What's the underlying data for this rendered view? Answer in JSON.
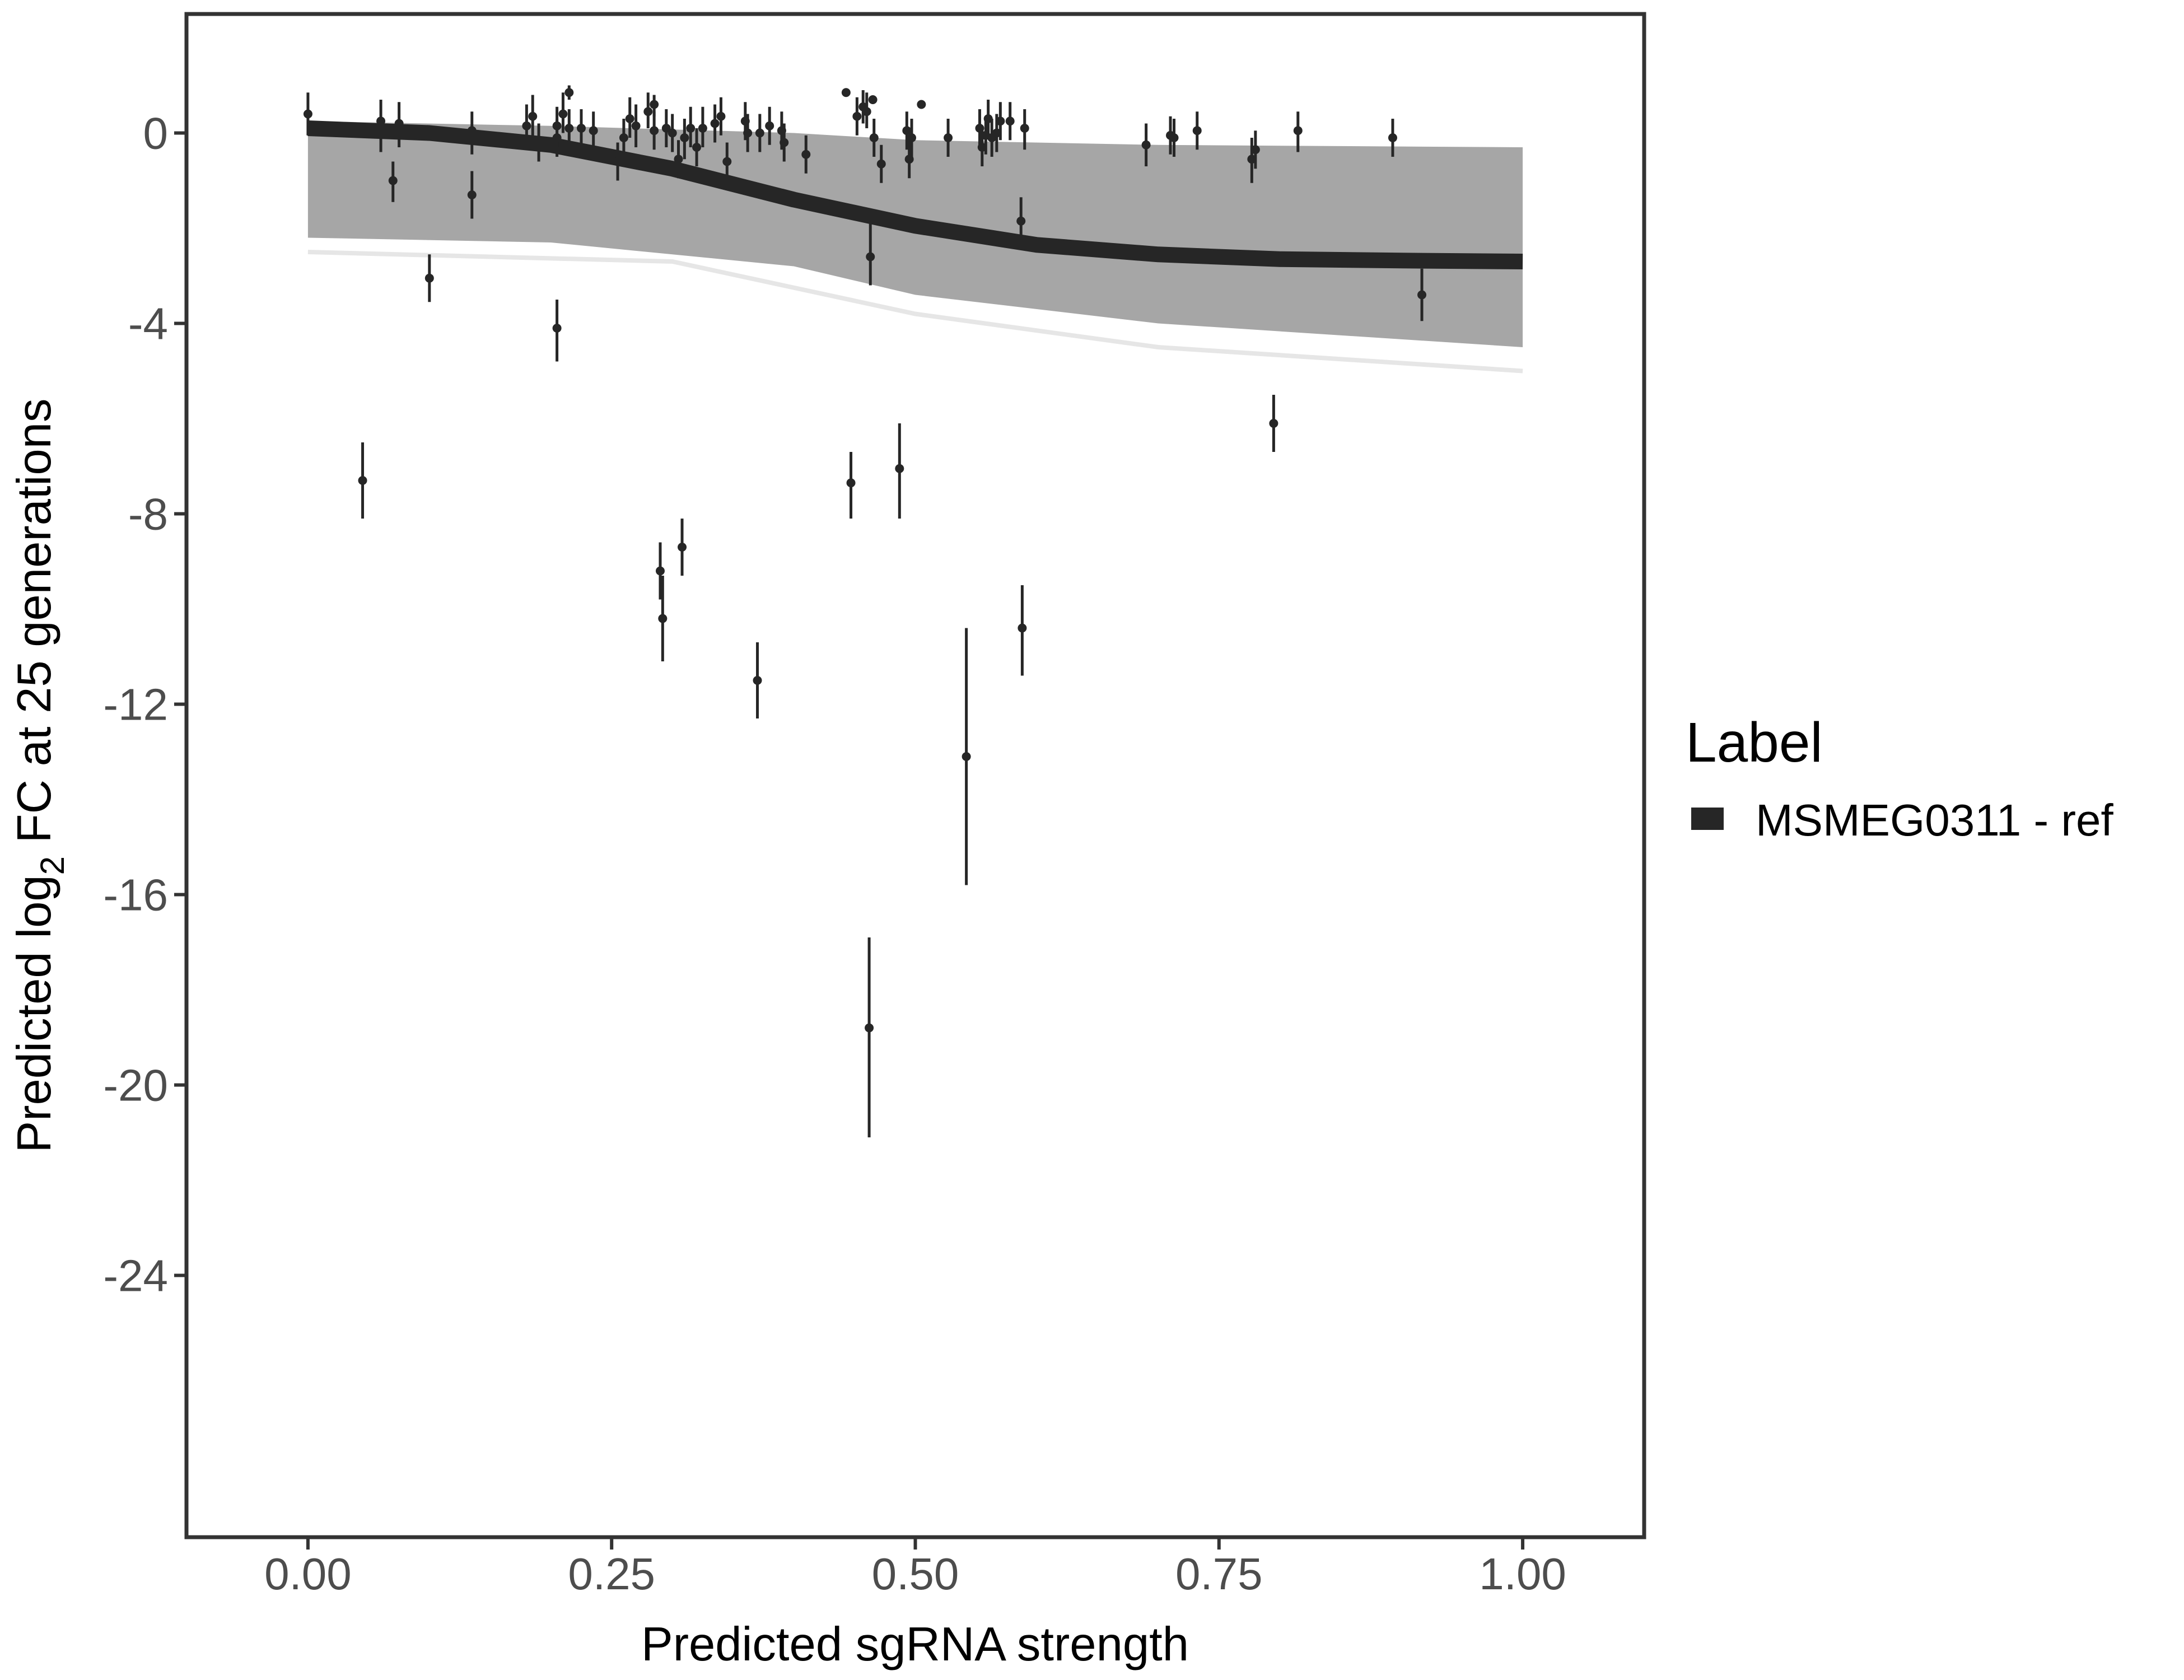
{
  "chart_data": {
    "type": "scatter",
    "xlabel": "Predicted sgRNA strength",
    "ylabel_parts": {
      "prefix": "Predicted  log",
      "subscript": "2",
      "suffix": " FC at 25 generations"
    },
    "xlim": [
      -0.1,
      1.1
    ],
    "ylim": [
      -29.5,
      2.5
    ],
    "x_ticks": [
      {
        "value": 0.0,
        "label": "0.00"
      },
      {
        "value": 0.25,
        "label": "0.25"
      },
      {
        "value": 0.5,
        "label": "0.50"
      },
      {
        "value": 0.75,
        "label": "0.75"
      },
      {
        "value": 1.0,
        "label": "1.00"
      }
    ],
    "y_ticks": [
      {
        "value": 0,
        "label": "0"
      },
      {
        "value": -4,
        "label": "-4"
      },
      {
        "value": -8,
        "label": "-8"
      },
      {
        "value": -12,
        "label": "-12"
      },
      {
        "value": -16,
        "label": "-16"
      },
      {
        "value": -20,
        "label": "-20"
      },
      {
        "value": -24,
        "label": "-24"
      }
    ],
    "grid": false,
    "legend": {
      "title": "Label",
      "placement": "right",
      "entries": [
        {
          "label": "MSMEG0311 - ref",
          "color": "#262626"
        }
      ]
    },
    "fit_curve": {
      "color": "#262626",
      "points": [
        [
          0,
          0.1
        ],
        [
          0.1,
          0.0
        ],
        [
          0.2,
          -0.25
        ],
        [
          0.3,
          -0.75
        ],
        [
          0.4,
          -1.4
        ],
        [
          0.5,
          -1.95
        ],
        [
          0.6,
          -2.35
        ],
        [
          0.7,
          -2.55
        ],
        [
          0.8,
          -2.65
        ],
        [
          0.9,
          -2.68
        ],
        [
          1.0,
          -2.7
        ]
      ]
    },
    "band": {
      "color": "#a6a6a6",
      "upper": [
        [
          0,
          0.25
        ],
        [
          0.2,
          0.15
        ],
        [
          0.4,
          0.0
        ],
        [
          0.5,
          -0.15
        ],
        [
          0.7,
          -0.25
        ],
        [
          1.0,
          -0.3
        ]
      ],
      "lower": [
        [
          0,
          -2.2
        ],
        [
          0.2,
          -2.3
        ],
        [
          0.4,
          -2.8
        ],
        [
          0.5,
          -3.4
        ],
        [
          0.7,
          -4.0
        ],
        [
          1.0,
          -4.5
        ]
      ]
    },
    "points": [
      {
        "x": 0.0,
        "y": 0.4,
        "lo": -0.05,
        "hi": 0.85
      },
      {
        "x": 0.045,
        "y": -7.3,
        "lo": -8.1,
        "hi": -6.5
      },
      {
        "x": 0.06,
        "y": 0.25,
        "lo": -0.4,
        "hi": 0.7
      },
      {
        "x": 0.07,
        "y": -1.0,
        "lo": -1.45,
        "hi": -0.6
      },
      {
        "x": 0.075,
        "y": 0.2,
        "lo": -0.3,
        "hi": 0.65
      },
      {
        "x": 0.1,
        "y": -3.05,
        "lo": -3.55,
        "hi": -2.55
      },
      {
        "x": 0.135,
        "y": 0.05,
        "lo": -0.45,
        "hi": 0.45
      },
      {
        "x": 0.135,
        "y": -1.3,
        "lo": -1.8,
        "hi": -0.8
      },
      {
        "x": 0.18,
        "y": 0.15,
        "lo": -0.3,
        "hi": 0.6
      },
      {
        "x": 0.185,
        "y": 0.35,
        "lo": -0.1,
        "hi": 0.8
      },
      {
        "x": 0.19,
        "y": -0.2,
        "lo": -0.6,
        "hi": 0.2
      },
      {
        "x": 0.205,
        "y": -4.1,
        "lo": -4.8,
        "hi": -3.5
      },
      {
        "x": 0.205,
        "y": 0.15,
        "lo": -0.3,
        "hi": 0.55
      },
      {
        "x": 0.205,
        "y": -0.1,
        "lo": -0.5,
        "hi": 0.3
      },
      {
        "x": 0.21,
        "y": 0.4,
        "lo": 0.0,
        "hi": 0.85
      },
      {
        "x": 0.215,
        "y": 0.1,
        "lo": -0.3,
        "hi": 0.5
      },
      {
        "x": 0.215,
        "y": 0.85,
        "lo": 0.7,
        "hi": 1.0
      },
      {
        "x": 0.225,
        "y": 0.1,
        "lo": -0.35,
        "hi": 0.5
      },
      {
        "x": 0.235,
        "y": 0.05,
        "lo": -0.35,
        "hi": 0.45
      },
      {
        "x": 0.255,
        "y": -0.6,
        "lo": -1.0,
        "hi": -0.2
      },
      {
        "x": 0.26,
        "y": -0.1,
        "lo": -0.5,
        "hi": 0.3
      },
      {
        "x": 0.265,
        "y": 0.3,
        "lo": -0.1,
        "hi": 0.75
      },
      {
        "x": 0.27,
        "y": 0.15,
        "lo": -0.3,
        "hi": 0.6
      },
      {
        "x": 0.28,
        "y": 0.45,
        "lo": 0.1,
        "hi": 0.85
      },
      {
        "x": 0.285,
        "y": 0.6,
        "lo": 0.35,
        "hi": 0.8
      },
      {
        "x": 0.285,
        "y": 0.05,
        "lo": -0.35,
        "hi": 0.45
      },
      {
        "x": 0.29,
        "y": -9.2,
        "lo": -9.8,
        "hi": -8.6
      },
      {
        "x": 0.292,
        "y": -10.2,
        "lo": -11.1,
        "hi": -9.3
      },
      {
        "x": 0.295,
        "y": 0.1,
        "lo": -0.3,
        "hi": 0.5
      },
      {
        "x": 0.3,
        "y": 0.0,
        "lo": -0.4,
        "hi": 0.4
      },
      {
        "x": 0.305,
        "y": -0.55,
        "lo": -0.95,
        "hi": -0.15
      },
      {
        "x": 0.308,
        "y": -8.7,
        "lo": -9.3,
        "hi": -8.1
      },
      {
        "x": 0.31,
        "y": -0.1,
        "lo": -0.55,
        "hi": 0.3
      },
      {
        "x": 0.315,
        "y": 0.1,
        "lo": -0.3,
        "hi": 0.55
      },
      {
        "x": 0.32,
        "y": -0.3,
        "lo": -0.7,
        "hi": 0.1
      },
      {
        "x": 0.325,
        "y": 0.1,
        "lo": -0.3,
        "hi": 0.55
      },
      {
        "x": 0.335,
        "y": 0.2,
        "lo": -0.2,
        "hi": 0.6
      },
      {
        "x": 0.34,
        "y": 0.35,
        "lo": -0.05,
        "hi": 0.75
      },
      {
        "x": 0.345,
        "y": -0.6,
        "lo": -1.0,
        "hi": -0.2
      },
      {
        "x": 0.36,
        "y": 0.25,
        "lo": -0.15,
        "hi": 0.65
      },
      {
        "x": 0.362,
        "y": 0.0,
        "lo": -0.4,
        "hi": 0.4
      },
      {
        "x": 0.37,
        "y": -11.5,
        "lo": -12.3,
        "hi": -10.7
      },
      {
        "x": 0.372,
        "y": 0.0,
        "lo": -0.4,
        "hi": 0.4
      },
      {
        "x": 0.38,
        "y": 0.15,
        "lo": -0.25,
        "hi": 0.55
      },
      {
        "x": 0.39,
        "y": 0.05,
        "lo": -0.35,
        "hi": 0.45
      },
      {
        "x": 0.392,
        "y": -0.2,
        "lo": -0.6,
        "hi": 0.2
      },
      {
        "x": 0.41,
        "y": -0.45,
        "lo": -0.85,
        "hi": -0.05
      },
      {
        "x": 0.443,
        "y": 0.85,
        "lo": 0.85,
        "hi": 0.85
      },
      {
        "x": 0.447,
        "y": -7.35,
        "lo": -8.1,
        "hi": -6.7
      },
      {
        "x": 0.452,
        "y": 0.35,
        "lo": -0.05,
        "hi": 0.75
      },
      {
        "x": 0.457,
        "y": 0.55,
        "lo": 0.2,
        "hi": 0.9
      },
      {
        "x": 0.46,
        "y": 0.45,
        "lo": 0.1,
        "hi": 0.85
      },
      {
        "x": 0.462,
        "y": -18.8,
        "lo": -21.1,
        "hi": -16.9
      },
      {
        "x": 0.463,
        "y": -2.6,
        "lo": -3.2,
        "hi": -1.9
      },
      {
        "x": 0.465,
        "y": 0.7,
        "lo": 0.7,
        "hi": 0.7
      },
      {
        "x": 0.466,
        "y": -0.1,
        "lo": -0.5,
        "hi": 0.3
      },
      {
        "x": 0.472,
        "y": -0.65,
        "lo": -1.05,
        "hi": -0.25
      },
      {
        "x": 0.487,
        "y": -7.05,
        "lo": -8.1,
        "hi": -6.1
      },
      {
        "x": 0.493,
        "y": 0.05,
        "lo": -0.35,
        "hi": 0.45
      },
      {
        "x": 0.495,
        "y": -0.55,
        "lo": -0.95,
        "hi": -0.15
      },
      {
        "x": 0.497,
        "y": -0.1,
        "lo": -0.5,
        "hi": 0.3
      },
      {
        "x": 0.505,
        "y": 0.6,
        "lo": 0.6,
        "hi": 0.6
      },
      {
        "x": 0.527,
        "y": -0.1,
        "lo": -0.5,
        "hi": 0.3
      },
      {
        "x": 0.542,
        "y": -13.1,
        "lo": -15.8,
        "hi": -10.4
      },
      {
        "x": 0.553,
        "y": 0.1,
        "lo": -0.3,
        "hi": 0.5
      },
      {
        "x": 0.555,
        "y": -0.3,
        "lo": -0.7,
        "hi": 0.1
      },
      {
        "x": 0.558,
        "y": -0.05,
        "lo": -0.45,
        "hi": 0.35
      },
      {
        "x": 0.56,
        "y": 0.3,
        "lo": -0.1,
        "hi": 0.7
      },
      {
        "x": 0.563,
        "y": -0.1,
        "lo": -0.5,
        "hi": 0.3
      },
      {
        "x": 0.567,
        "y": 0.0,
        "lo": -0.4,
        "hi": 0.4
      },
      {
        "x": 0.57,
        "y": 0.25,
        "lo": -0.15,
        "hi": 0.65
      },
      {
        "x": 0.578,
        "y": 0.25,
        "lo": -0.15,
        "hi": 0.65
      },
      {
        "x": 0.587,
        "y": -1.85,
        "lo": -2.35,
        "hi": -1.35
      },
      {
        "x": 0.588,
        "y": -10.4,
        "lo": -11.4,
        "hi": -9.5
      },
      {
        "x": 0.59,
        "y": 0.1,
        "lo": -0.35,
        "hi": 0.5
      },
      {
        "x": 0.69,
        "y": -0.25,
        "lo": -0.7,
        "hi": 0.2
      },
      {
        "x": 0.71,
        "y": -0.05,
        "lo": -0.45,
        "hi": 0.35
      },
      {
        "x": 0.713,
        "y": -0.1,
        "lo": -0.5,
        "hi": 0.3
      },
      {
        "x": 0.732,
        "y": 0.05,
        "lo": -0.35,
        "hi": 0.45
      },
      {
        "x": 0.777,
        "y": -0.55,
        "lo": -1.05,
        "hi": -0.1
      },
      {
        "x": 0.78,
        "y": -0.35,
        "lo": -0.75,
        "hi": 0.05
      },
      {
        "x": 0.795,
        "y": -6.1,
        "lo": -6.7,
        "hi": -5.5
      },
      {
        "x": 0.815,
        "y": 0.05,
        "lo": -0.4,
        "hi": 0.45
      },
      {
        "x": 0.893,
        "y": -0.1,
        "lo": -0.5,
        "hi": 0.3
      },
      {
        "x": 0.917,
        "y": -3.4,
        "lo": -3.95,
        "hi": -2.85
      }
    ]
  }
}
